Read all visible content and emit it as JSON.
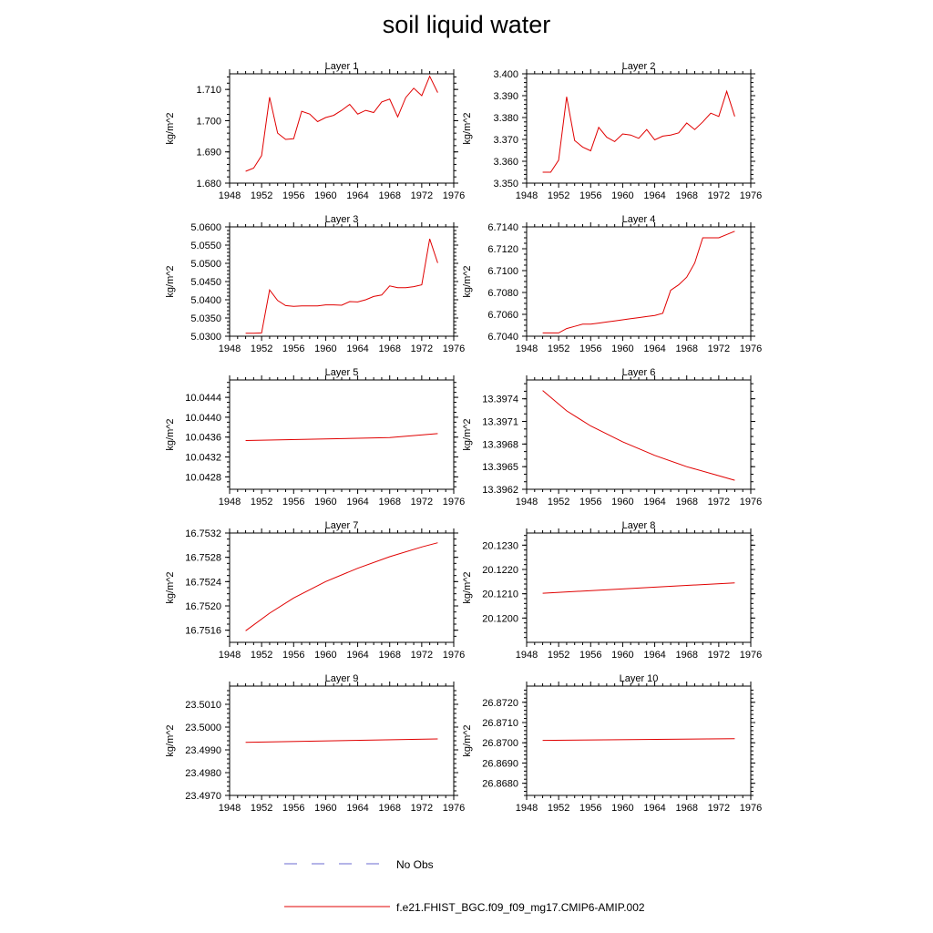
{
  "page_title": "soil liquid water",
  "legend": {
    "obs_label": "No Obs",
    "obs_color": "#6a6ad0",
    "model_label": "f.e21.FHIST_BGC.f09_f09_mg17.CMIP6-AMIP.002",
    "model_color": "#e00000"
  },
  "chart_data": [
    {
      "type": "line",
      "title": "Layer 1",
      "ylabel": "kg/m^2",
      "xlabel": "",
      "xlim": [
        1948,
        1976
      ],
      "xticks": [
        1948,
        1952,
        1956,
        1960,
        1964,
        1968,
        1972,
        1976
      ],
      "ylim": [
        1.68,
        1.715
      ],
      "yticks": [
        1.68,
        1.69,
        1.7,
        1.71
      ],
      "ydec": 3,
      "yminor": 5,
      "series": [
        {
          "name": "f.e21.FHIST_BGC.f09_f09_mg17.CMIP6-AMIP.002",
          "x": [
            1950,
            1951,
            1952,
            1953,
            1954,
            1955,
            1956,
            1957,
            1958,
            1959,
            1960,
            1961,
            1962,
            1963,
            1964,
            1965,
            1966,
            1967,
            1968,
            1969,
            1970,
            1971,
            1972,
            1973,
            1974
          ],
          "values": [
            1.6838,
            1.6848,
            1.6888,
            1.7075,
            1.696,
            1.694,
            1.6942,
            1.703,
            1.7021,
            1.6997,
            1.701,
            1.7017,
            1.7033,
            1.7052,
            1.7021,
            1.7033,
            1.7026,
            1.706,
            1.7069,
            1.7012,
            1.7074,
            1.7104,
            1.708,
            1.7142,
            1.709
          ]
        }
      ]
    },
    {
      "type": "line",
      "title": "Layer 2",
      "ylabel": "kg/m^2",
      "xlabel": "",
      "xlim": [
        1948,
        1976
      ],
      "xticks": [
        1948,
        1952,
        1956,
        1960,
        1964,
        1968,
        1972,
        1976
      ],
      "ylim": [
        3.35,
        3.4
      ],
      "yticks": [
        3.35,
        3.36,
        3.37,
        3.38,
        3.39,
        3.4
      ],
      "ydec": 3,
      "yminor": 5,
      "series": [
        {
          "name": "f.e21.FHIST_BGC.f09_f09_mg17.CMIP6-AMIP.002",
          "x": [
            1950,
            1951,
            1952,
            1953,
            1954,
            1955,
            1956,
            1957,
            1958,
            1959,
            1960,
            1961,
            1962,
            1963,
            1964,
            1965,
            1966,
            1967,
            1968,
            1969,
            1970,
            1971,
            1972,
            1973,
            1974
          ],
          "values": [
            3.355,
            3.355,
            3.3605,
            3.3895,
            3.3695,
            3.3665,
            3.3648,
            3.3755,
            3.371,
            3.369,
            3.3725,
            3.372,
            3.3705,
            3.3745,
            3.3698,
            3.3715,
            3.372,
            3.373,
            3.3775,
            3.3745,
            3.378,
            3.382,
            3.3805,
            3.392,
            3.3805
          ]
        }
      ]
    },
    {
      "type": "line",
      "title": "Layer 3",
      "ylabel": "kg/m^2",
      "xlabel": "",
      "xlim": [
        1948,
        1976
      ],
      "xticks": [
        1948,
        1952,
        1956,
        1960,
        1964,
        1968,
        1972,
        1976
      ],
      "ylim": [
        5.03,
        5.06
      ],
      "yticks": [
        5.03,
        5.035,
        5.04,
        5.045,
        5.05,
        5.055,
        5.06
      ],
      "ydec": 4,
      "yminor": 5,
      "series": [
        {
          "name": "f.e21.FHIST_BGC.f09_f09_mg17.CMIP6-AMIP.002",
          "x": [
            1950,
            1951,
            1952,
            1953,
            1954,
            1955,
            1956,
            1957,
            1958,
            1959,
            1960,
            1961,
            1962,
            1963,
            1964,
            1965,
            1966,
            1967,
            1968,
            1969,
            1970,
            1971,
            1972,
            1973,
            1974
          ],
          "values": [
            5.0308,
            5.0308,
            5.0309,
            5.0427,
            5.0398,
            5.0384,
            5.0382,
            5.0383,
            5.0383,
            5.0383,
            5.0386,
            5.0386,
            5.0385,
            5.0395,
            5.0394,
            5.04,
            5.0409,
            5.0413,
            5.0438,
            5.0433,
            5.0433,
            5.0436,
            5.0441,
            5.0567,
            5.0501
          ]
        }
      ]
    },
    {
      "type": "line",
      "title": "Layer 4",
      "ylabel": "kg/m^2",
      "xlabel": "",
      "xlim": [
        1948,
        1976
      ],
      "xticks": [
        1948,
        1952,
        1956,
        1960,
        1964,
        1968,
        1972,
        1976
      ],
      "ylim": [
        6.704,
        6.714
      ],
      "yticks": [
        6.704,
        6.706,
        6.708,
        6.71,
        6.712,
        6.714
      ],
      "ydec": 4,
      "yminor": 4,
      "series": [
        {
          "name": "f.e21.FHIST_BGC.f09_f09_mg17.CMIP6-AMIP.002",
          "x": [
            1950,
            1951,
            1952,
            1953,
            1954,
            1955,
            1956,
            1957,
            1958,
            1959,
            1960,
            1961,
            1962,
            1963,
            1964,
            1965,
            1966,
            1967,
            1968,
            1969,
            1970,
            1971,
            1972,
            1973,
            1974
          ],
          "values": [
            6.7043,
            6.7043,
            6.7043,
            6.7047,
            6.7049,
            6.7051,
            6.7051,
            6.7052,
            6.7053,
            6.7054,
            6.7055,
            6.7056,
            6.7057,
            6.7058,
            6.7059,
            6.7061,
            6.7082,
            6.7087,
            6.7094,
            6.7107,
            6.713,
            6.713,
            6.713,
            6.7133,
            6.7136
          ]
        }
      ]
    },
    {
      "type": "line",
      "title": "Layer 5",
      "ylabel": "kg/m^2",
      "xlabel": "",
      "xlim": [
        1948,
        1976
      ],
      "xticks": [
        1948,
        1952,
        1956,
        1960,
        1964,
        1968,
        1972,
        1976
      ],
      "ylim": [
        10.04255,
        10.04475
      ],
      "yticks": [
        10.0428,
        10.0432,
        10.0436,
        10.044,
        10.0444
      ],
      "ydec": 4,
      "yminor": 4,
      "series": [
        {
          "name": "f.e21.FHIST_BGC.f09_f09_mg17.CMIP6-AMIP.002",
          "x": [
            1950,
            1968,
            1974
          ],
          "values": [
            10.04353,
            10.04359,
            10.04367
          ]
        }
      ]
    },
    {
      "type": "line",
      "title": "Layer 6",
      "ylabel": "kg/m^2",
      "xlabel": "",
      "xlim": [
        1948,
        1976
      ],
      "xticks": [
        1948,
        1952,
        1956,
        1960,
        1964,
        1968,
        1972,
        1976
      ],
      "ylim": [
        13.3962,
        13.39765
      ],
      "yticks": [
        13.3962,
        13.3965,
        13.3968,
        13.3971,
        13.3974
      ],
      "ydec": 4,
      "yminor": 3,
      "series": [
        {
          "name": "f.e21.FHIST_BGC.f09_f09_mg17.CMIP6-AMIP.002",
          "x": [
            1950,
            1953,
            1956,
            1960,
            1964,
            1968,
            1972,
            1974
          ],
          "values": [
            13.39751,
            13.39724,
            13.39704,
            13.39683,
            13.39665,
            13.3965,
            13.39638,
            13.39632
          ]
        }
      ]
    },
    {
      "type": "line",
      "title": "Layer 7",
      "ylabel": "kg/m^2",
      "xlabel": "",
      "xlim": [
        1948,
        1976
      ],
      "xticks": [
        1948,
        1952,
        1956,
        1960,
        1964,
        1968,
        1972,
        1976
      ],
      "ylim": [
        16.7514,
        16.7532
      ],
      "yticks": [
        16.7516,
        16.752,
        16.7524,
        16.7528,
        16.7532
      ],
      "ydec": 4,
      "yminor": 4,
      "series": [
        {
          "name": "f.e21.FHIST_BGC.f09_f09_mg17.CMIP6-AMIP.002",
          "x": [
            1950,
            1953,
            1956,
            1960,
            1964,
            1968,
            1972,
            1974
          ],
          "values": [
            16.75159,
            16.75188,
            16.75213,
            16.7524,
            16.75262,
            16.75281,
            16.75297,
            16.75304
          ]
        }
      ]
    },
    {
      "type": "line",
      "title": "Layer 8",
      "ylabel": "kg/m^2",
      "xlabel": "",
      "xlim": [
        1948,
        1976
      ],
      "xticks": [
        1948,
        1952,
        1956,
        1960,
        1964,
        1968,
        1972,
        1976
      ],
      "ylim": [
        20.119,
        20.1235
      ],
      "yticks": [
        20.12,
        20.121,
        20.122,
        20.123
      ],
      "ydec": 4,
      "yminor": 5,
      "series": [
        {
          "name": "f.e21.FHIST_BGC.f09_f09_mg17.CMIP6-AMIP.002",
          "x": [
            1950,
            1974
          ],
          "values": [
            20.12102,
            20.12145
          ]
        }
      ]
    },
    {
      "type": "line",
      "title": "Layer 9",
      "ylabel": "kg/m^2",
      "xlabel": "",
      "xlim": [
        1948,
        1976
      ],
      "xticks": [
        1948,
        1952,
        1956,
        1960,
        1964,
        1968,
        1972,
        1976
      ],
      "ylim": [
        23.497,
        23.5018
      ],
      "yticks": [
        23.497,
        23.498,
        23.499,
        23.5,
        23.501
      ],
      "ydec": 4,
      "yminor": 5,
      "series": [
        {
          "name": "f.e21.FHIST_BGC.f09_f09_mg17.CMIP6-AMIP.002",
          "x": [
            1950,
            1974
          ],
          "values": [
            23.49933,
            23.49948
          ]
        }
      ]
    },
    {
      "type": "line",
      "title": "Layer 10",
      "ylabel": "kg/m^2",
      "xlabel": "",
      "xlim": [
        1948,
        1976
      ],
      "xticks": [
        1948,
        1952,
        1956,
        1960,
        1964,
        1968,
        1972,
        1976
      ],
      "ylim": [
        26.8674,
        26.8728
      ],
      "yticks": [
        26.868,
        26.869,
        26.87,
        26.871,
        26.872
      ],
      "ydec": 4,
      "yminor": 5,
      "series": [
        {
          "name": "f.e21.FHIST_BGC.f09_f09_mg17.CMIP6-AMIP.002",
          "x": [
            1950,
            1974
          ],
          "values": [
            26.87012,
            26.8702
          ]
        }
      ]
    }
  ]
}
